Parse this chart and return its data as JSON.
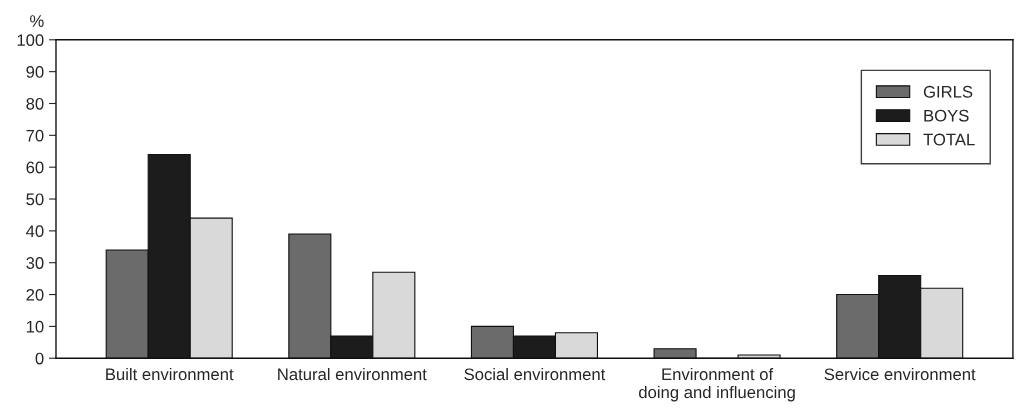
{
  "chart_data": {
    "type": "bar",
    "ylabel": "%",
    "categories": [
      "Built environment",
      "Natural environment",
      "Social environment",
      "Environment of\ndoing and influencing",
      "Service environment"
    ],
    "series": [
      {
        "name": "GIRLS",
        "color": "#6b6b6b",
        "values": [
          34,
          39,
          10,
          3,
          20
        ]
      },
      {
        "name": "BOYS",
        "color": "#1c1c1c",
        "values": [
          64,
          7,
          7,
          0,
          26
        ]
      },
      {
        "name": "TOTAL",
        "color": "#d9d9d9",
        "values": [
          44,
          27,
          8,
          1,
          22
        ]
      }
    ],
    "ylim": [
      0,
      100
    ],
    "yticks": [
      0,
      10,
      20,
      30,
      40,
      50,
      60,
      70,
      80,
      90,
      100
    ],
    "grid": false,
    "legend": "top right"
  }
}
